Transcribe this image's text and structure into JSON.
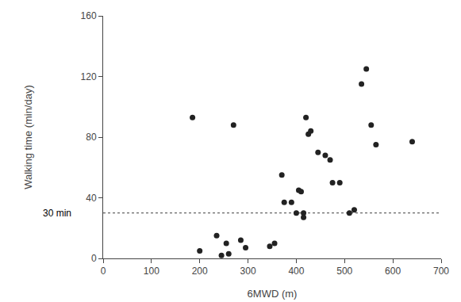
{
  "chart_data": {
    "type": "scatter",
    "x": [
      185,
      200,
      235,
      245,
      255,
      260,
      270,
      285,
      295,
      345,
      355,
      370,
      375,
      390,
      400,
      405,
      410,
      415,
      415,
      420,
      425,
      430,
      445,
      460,
      470,
      475,
      490,
      510,
      520,
      535,
      545,
      555,
      565,
      640
    ],
    "values": [
      93,
      5,
      15,
      2,
      10,
      3,
      88,
      12,
      7,
      8,
      10,
      55,
      37,
      37,
      30,
      45,
      44,
      30,
      27,
      93,
      82,
      84,
      70,
      68,
      65,
      50,
      50,
      30,
      32,
      115,
      125,
      88,
      75,
      77
    ],
    "color": "#222222",
    "xlabel": "6MWD (m)",
    "ylabel": "Walking time (min/day)",
    "xlim": [
      0,
      700
    ],
    "ylim": [
      0,
      160
    ],
    "xticks": [
      0,
      100,
      200,
      300,
      400,
      500,
      600,
      700
    ],
    "yticks": [
      0,
      40,
      80,
      120,
      160
    ],
    "grid": false,
    "hlines": [
      {
        "y": 30,
        "label": "30 min",
        "color": "#666666",
        "line_style": "dotted"
      }
    ]
  }
}
